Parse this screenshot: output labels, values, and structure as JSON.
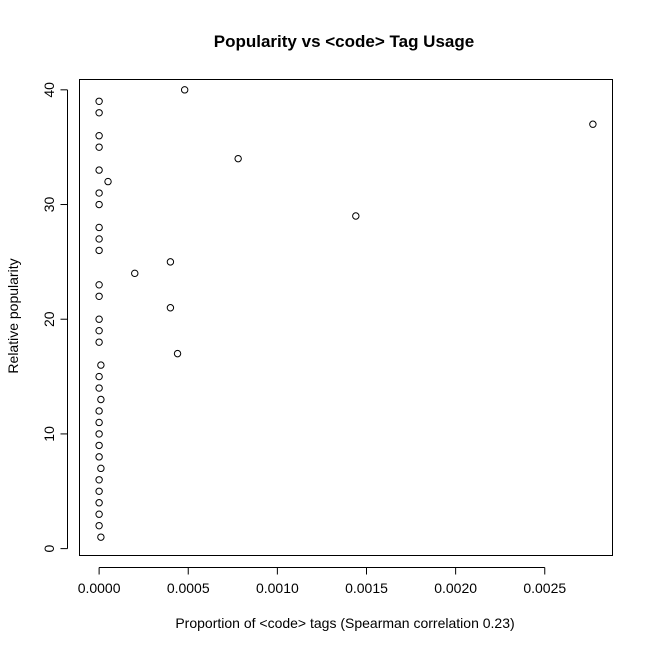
{
  "chart_data": {
    "type": "scatter",
    "title": "Popularity vs <code> Tag Usage",
    "xlabel": "Proportion of <code> tags (Spearman correlation 0.23)",
    "ylabel": "Relative popularity",
    "xlim": [
      -0.00011,
      0.00288
    ],
    "ylim": [
      -0.6,
      40.9
    ],
    "x_ticks": [
      0,
      0.0005,
      0.001,
      0.0015,
      0.002,
      0.0025
    ],
    "x_tick_labels": [
      "0.0000",
      "0.0005",
      "0.0010",
      "0.0015",
      "0.0020",
      "0.0025"
    ],
    "y_ticks": [
      0,
      10,
      20,
      30,
      40
    ],
    "y_tick_labels": [
      "0",
      "10",
      "20",
      "30",
      "40"
    ],
    "grid": false,
    "marker": "open-circle",
    "points": [
      {
        "x": 1e-05,
        "y": 1
      },
      {
        "x": 0.0,
        "y": 2
      },
      {
        "x": 0.0,
        "y": 3
      },
      {
        "x": 0.0,
        "y": 4
      },
      {
        "x": 0.0,
        "y": 5
      },
      {
        "x": 0.0,
        "y": 6
      },
      {
        "x": 1e-05,
        "y": 7
      },
      {
        "x": 0.0,
        "y": 8
      },
      {
        "x": 0.0,
        "y": 9
      },
      {
        "x": 0.0,
        "y": 10
      },
      {
        "x": 0.0,
        "y": 11
      },
      {
        "x": 0.0,
        "y": 12
      },
      {
        "x": 1e-05,
        "y": 13
      },
      {
        "x": 0.0,
        "y": 14
      },
      {
        "x": 0.0,
        "y": 15
      },
      {
        "x": 1e-05,
        "y": 16
      },
      {
        "x": 0.00044,
        "y": 17
      },
      {
        "x": 0.0,
        "y": 18
      },
      {
        "x": 0.0,
        "y": 19
      },
      {
        "x": 0.0,
        "y": 20
      },
      {
        "x": 0.0004,
        "y": 21
      },
      {
        "x": 0.0,
        "y": 22
      },
      {
        "x": 0.0,
        "y": 23
      },
      {
        "x": 0.0002,
        "y": 24
      },
      {
        "x": 0.0004,
        "y": 25
      },
      {
        "x": 0.0,
        "y": 26
      },
      {
        "x": 0.0,
        "y": 27
      },
      {
        "x": 0.0,
        "y": 28
      },
      {
        "x": 0.00144,
        "y": 29
      },
      {
        "x": 0.0,
        "y": 30
      },
      {
        "x": 0.0,
        "y": 31
      },
      {
        "x": 5e-05,
        "y": 32
      },
      {
        "x": 0.0,
        "y": 33
      },
      {
        "x": 0.00078,
        "y": 34
      },
      {
        "x": 0.0,
        "y": 35
      },
      {
        "x": 0.0,
        "y": 36
      },
      {
        "x": 0.00277,
        "y": 37
      },
      {
        "x": 0.0,
        "y": 38
      },
      {
        "x": 0.0,
        "y": 39
      },
      {
        "x": 0.00048,
        "y": 40
      }
    ]
  }
}
